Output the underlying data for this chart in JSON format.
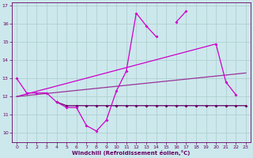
{
  "xlabel": "Windchill (Refroidissement éolien,°C)",
  "background_color": "#cce8ec",
  "grid_color": "#aacccc",
  "color1": "#cc00cc",
  "color2": "#993399",
  "color3": "#660066",
  "xlim": [
    -0.5,
    23.5
  ],
  "ylim": [
    9.5,
    17.2
  ],
  "x_hours": [
    0,
    1,
    2,
    3,
    4,
    5,
    6,
    7,
    8,
    9,
    10,
    11,
    12,
    13,
    14,
    15,
    16,
    17,
    18,
    19,
    20,
    21,
    22,
    23
  ],
  "y_main": [
    13.0,
    12.2,
    12.2,
    12.2,
    11.7,
    11.4,
    11.4,
    10.4,
    10.1,
    10.7,
    12.3,
    13.4,
    16.6,
    15.9,
    15.3,
    null,
    16.1,
    16.7,
    null,
    null,
    14.9,
    12.8,
    12.1,
    null
  ],
  "y_flat": [
    null,
    null,
    null,
    null,
    11.7,
    11.5,
    11.5,
    11.5,
    11.5,
    11.5,
    11.5,
    11.5,
    11.5,
    11.5,
    11.5,
    11.5,
    11.5,
    11.5,
    11.5,
    11.5,
    11.5,
    11.5,
    11.5,
    11.5
  ],
  "trend1_x": [
    0,
    20
  ],
  "trend1_y": [
    12.0,
    14.9
  ],
  "trend2_x": [
    0,
    23
  ],
  "trend2_y": [
    12.0,
    13.3
  ],
  "yticks": [
    10,
    11,
    12,
    13,
    14,
    15,
    16,
    17
  ]
}
